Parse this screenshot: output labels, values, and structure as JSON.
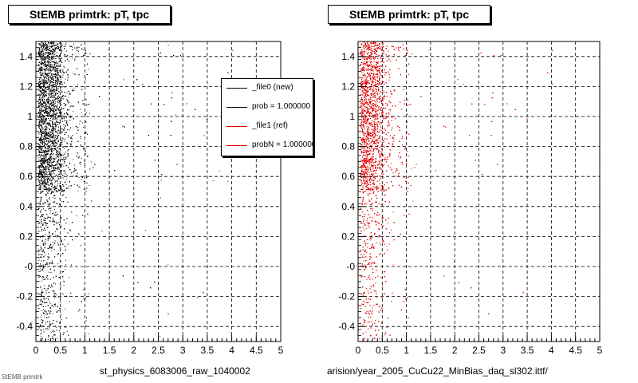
{
  "footer_text": "StEMB primtrk",
  "legend": {
    "entries": [
      {
        "label": "_file0 (new)",
        "color": "#000000"
      },
      {
        "label": "prob = 1.000000",
        "color": "#000000"
      },
      {
        "label": "_file1 (ref)",
        "color": "#e00000"
      },
      {
        "label": "probN = 1.000000",
        "color": "#e00000"
      }
    ]
  },
  "chart_data": [
    {
      "type": "scatter",
      "title": "StEMB primtrk: pT, tpc",
      "xlabel": "st_physics_6083006_raw_1040002",
      "ylabel": "",
      "marker_color": "#000000",
      "xlim": [
        0,
        5
      ],
      "ylim": [
        -0.5,
        1.5
      ],
      "xticks": [
        "0",
        "0.5",
        "1",
        "1.5",
        "2",
        "2.5",
        "3",
        "3.5",
        "4",
        "4.5",
        "5"
      ],
      "yticks": [
        "-0.4",
        "-0.2",
        "-0",
        "0.2",
        "0.4",
        "0.6",
        "0.8",
        "1",
        "1.2",
        "1.4"
      ],
      "grid": true,
      "density_profile": {
        "x_peak": 0.25,
        "dense_band_y": [
          0.5,
          1.5
        ],
        "sparse_band_y": [
          -0.5,
          0.5
        ]
      }
    },
    {
      "type": "scatter",
      "title": "StEMB primtrk: pT, tpc",
      "xlabel": "arision/year_2005_CuCu22_MinBias_daq_sl302.ittf/",
      "ylabel": "",
      "marker_color": "#e00000",
      "xlim": [
        0,
        5
      ],
      "ylim": [
        -0.5,
        1.5
      ],
      "xticks": [
        "0",
        "0.5",
        "1",
        "1.5",
        "2",
        "2.5",
        "3",
        "3.5",
        "4",
        "4.5",
        "5"
      ],
      "yticks": [
        "-0.4",
        "-0.2",
        "-0",
        "0.2",
        "0.4",
        "0.6",
        "0.8",
        "1",
        "1.2",
        "1.4"
      ],
      "grid": true,
      "density_profile": {
        "x_peak": 0.25,
        "dense_band_y": [
          0.5,
          1.5
        ],
        "sparse_band_y": [
          -0.5,
          0.5
        ]
      }
    }
  ]
}
